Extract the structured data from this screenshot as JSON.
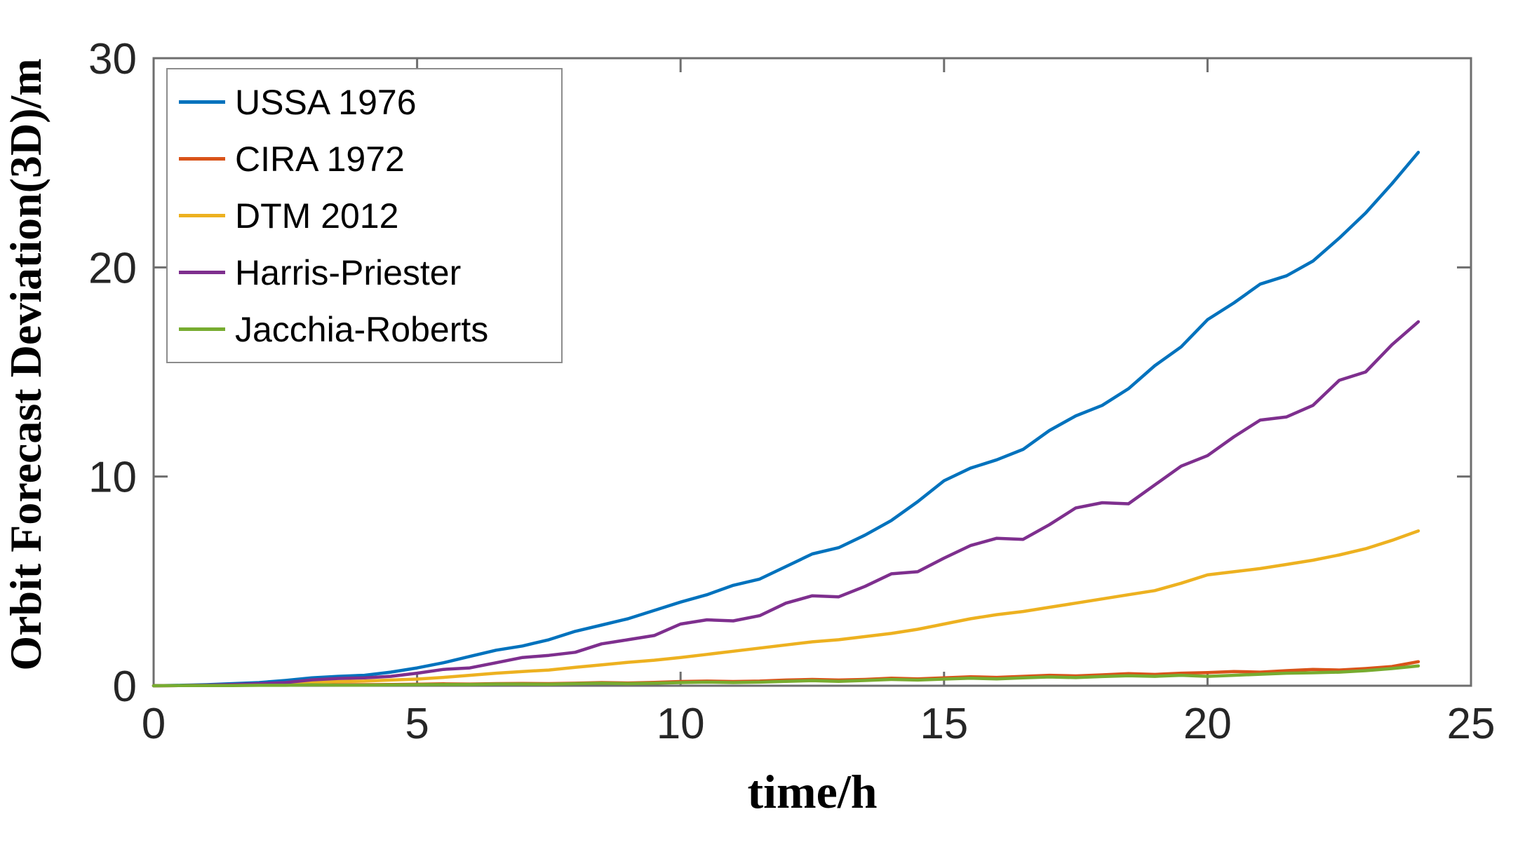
{
  "chart_data": {
    "type": "line",
    "title": "",
    "xlabel": "time/h",
    "ylabel": "Orbit Forecast Deviation(3D)/m",
    "xlim": [
      0,
      25
    ],
    "ylim": [
      0,
      30
    ],
    "xticks": [
      "0",
      "5",
      "10",
      "15",
      "20",
      "25"
    ],
    "yticks": [
      "0",
      "10",
      "20",
      "30"
    ],
    "grid": false,
    "legend_position": "top-left",
    "x": [
      0,
      0.5,
      1,
      1.5,
      2,
      2.5,
      3,
      3.5,
      4,
      4.5,
      5,
      5.5,
      6,
      6.5,
      7,
      7.5,
      8,
      8.5,
      9,
      9.5,
      10,
      10.5,
      11,
      11.5,
      12,
      12.5,
      13,
      13.5,
      14,
      14.5,
      15,
      15.5,
      16,
      16.5,
      17,
      17.5,
      18,
      18.5,
      19,
      19.5,
      20,
      20.5,
      21,
      21.5,
      22,
      22.5,
      23,
      23.5,
      24
    ],
    "series": [
      {
        "name": "USSA 1976",
        "color": "#0072BD",
        "values": [
          0,
          0.02,
          0.05,
          0.1,
          0.15,
          0.25,
          0.38,
          0.45,
          0.5,
          0.65,
          0.85,
          1.1,
          1.4,
          1.7,
          1.9,
          2.2,
          2.6,
          2.9,
          3.2,
          3.6,
          4.0,
          4.35,
          4.8,
          5.1,
          5.7,
          6.3,
          6.6,
          7.2,
          7.9,
          8.8,
          9.8,
          10.4,
          10.8,
          11.3,
          12.2,
          12.9,
          13.4,
          14.2,
          15.3,
          16.2,
          17.5,
          18.3,
          19.2,
          19.6,
          20.3,
          21.4,
          22.6,
          24.0,
          25.5
        ]
      },
      {
        "name": "CIRA 1972",
        "color": "#D95319",
        "values": [
          0,
          0.01,
          0.01,
          0.02,
          0.03,
          0.04,
          0.06,
          0.05,
          0.05,
          0.06,
          0.07,
          0.09,
          0.08,
          0.1,
          0.11,
          0.1,
          0.12,
          0.15,
          0.13,
          0.16,
          0.2,
          0.22,
          0.2,
          0.22,
          0.27,
          0.3,
          0.27,
          0.3,
          0.36,
          0.33,
          0.38,
          0.43,
          0.4,
          0.45,
          0.5,
          0.47,
          0.52,
          0.58,
          0.54,
          0.6,
          0.63,
          0.68,
          0.65,
          0.72,
          0.78,
          0.75,
          0.82,
          0.92,
          1.15
        ]
      },
      {
        "name": "DTM 2012",
        "color": "#EDB120",
        "values": [
          0,
          0.01,
          0.02,
          0.04,
          0.07,
          0.1,
          0.15,
          0.2,
          0.22,
          0.27,
          0.32,
          0.4,
          0.5,
          0.6,
          0.68,
          0.75,
          0.88,
          1.0,
          1.12,
          1.22,
          1.35,
          1.5,
          1.65,
          1.8,
          1.95,
          2.1,
          2.2,
          2.35,
          2.5,
          2.7,
          2.95,
          3.2,
          3.4,
          3.55,
          3.75,
          3.95,
          4.15,
          4.35,
          4.55,
          4.9,
          5.3,
          5.45,
          5.6,
          5.8,
          6.0,
          6.25,
          6.55,
          6.95,
          7.4
        ]
      },
      {
        "name": "Harris-Priester",
        "color": "#7E2F8E",
        "values": [
          0,
          0.01,
          0.03,
          0.06,
          0.1,
          0.15,
          0.28,
          0.35,
          0.38,
          0.45,
          0.6,
          0.78,
          0.85,
          1.1,
          1.35,
          1.45,
          1.6,
          2.0,
          2.2,
          2.4,
          2.95,
          3.15,
          3.1,
          3.35,
          3.95,
          4.3,
          4.25,
          4.75,
          5.35,
          5.45,
          6.1,
          6.7,
          7.05,
          7.0,
          7.7,
          8.5,
          8.75,
          8.7,
          9.6,
          10.5,
          11.0,
          11.9,
          12.7,
          12.85,
          13.4,
          14.6,
          15.0,
          16.3,
          17.4
        ]
      },
      {
        "name": "Jacchia-Roberts",
        "color": "#77AC30",
        "values": [
          0,
          0.01,
          0.01,
          0.01,
          0.02,
          0.02,
          0.04,
          0.03,
          0.03,
          0.04,
          0.05,
          0.06,
          0.06,
          0.08,
          0.08,
          0.07,
          0.1,
          0.12,
          0.1,
          0.12,
          0.15,
          0.17,
          0.15,
          0.17,
          0.21,
          0.24,
          0.21,
          0.25,
          0.3,
          0.27,
          0.32,
          0.36,
          0.33,
          0.38,
          0.42,
          0.39,
          0.44,
          0.48,
          0.45,
          0.5,
          0.45,
          0.5,
          0.55,
          0.6,
          0.62,
          0.65,
          0.72,
          0.82,
          0.95
        ]
      }
    ]
  },
  "style": {
    "axis_line_color": "#6e6e6e",
    "tick_label_color": "#262626",
    "background": "#ffffff",
    "line_width": 4.5
  }
}
